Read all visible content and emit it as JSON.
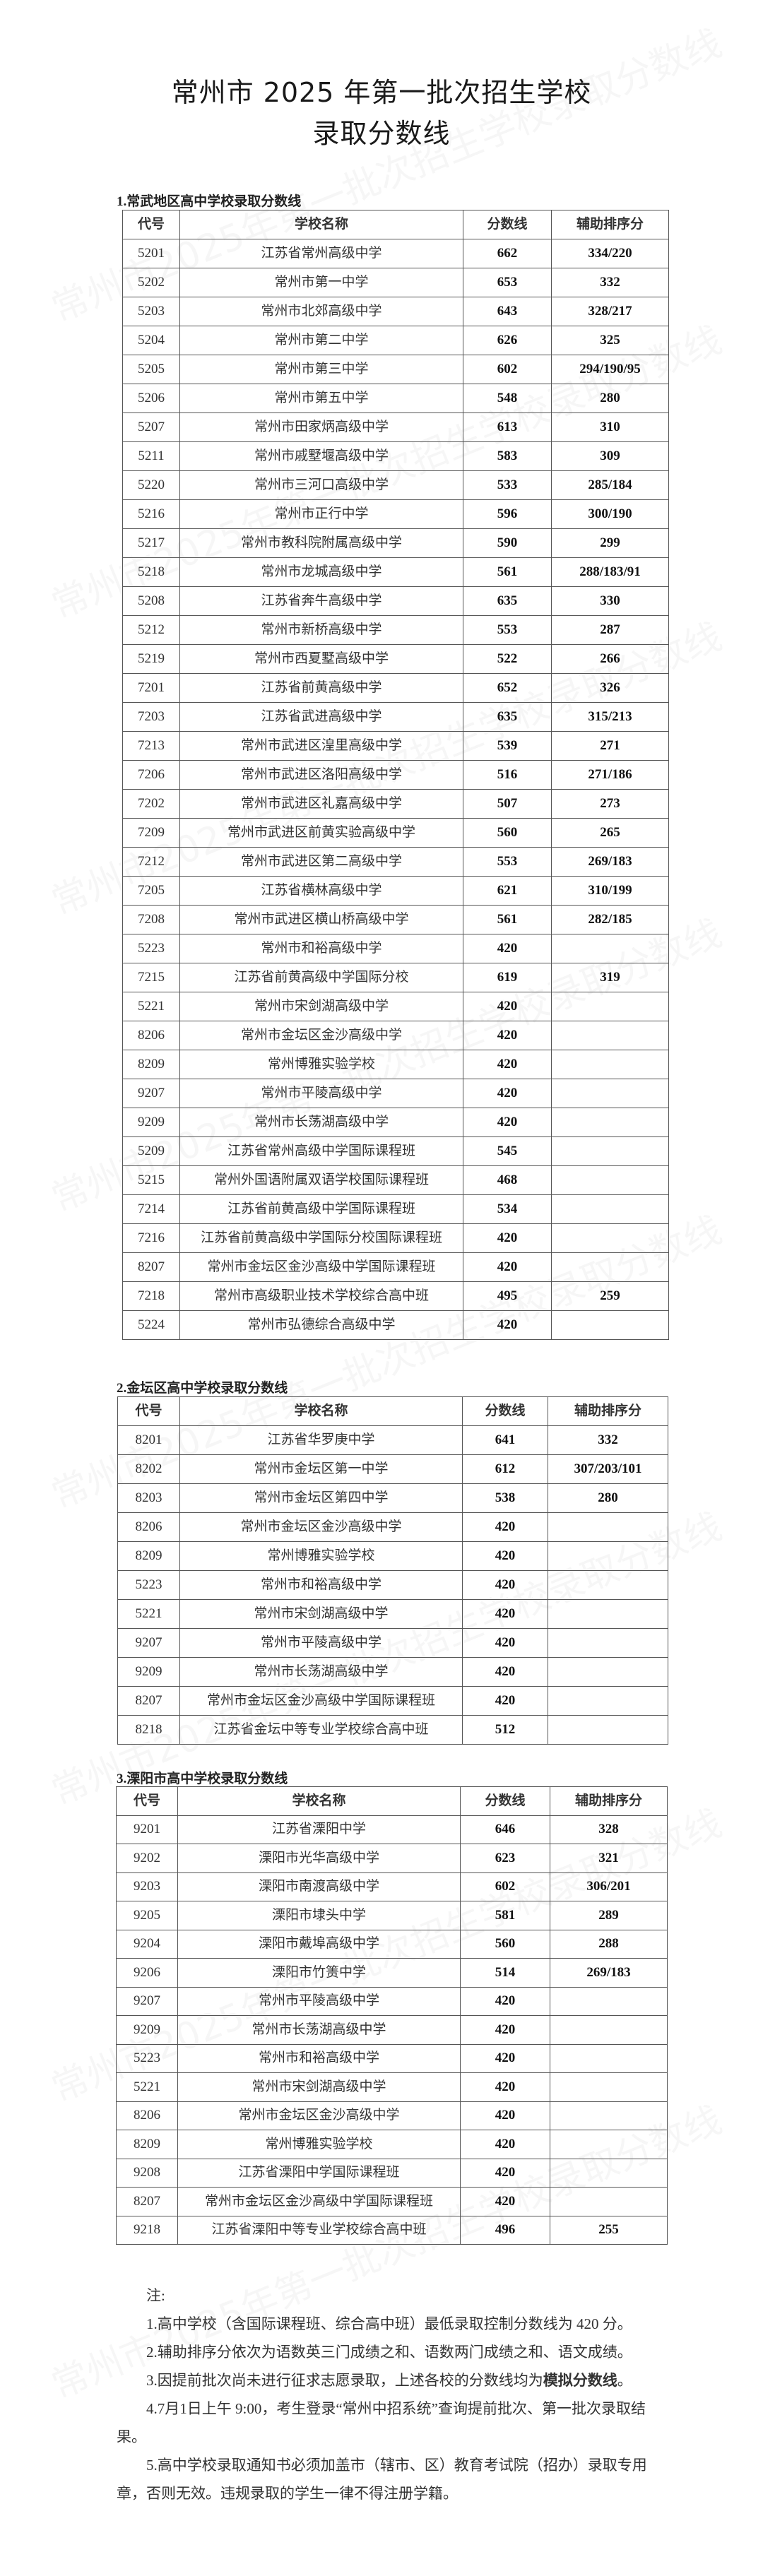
{
  "watermark": "常州市2025年第一批次招生学校录取分数线",
  "title_line1": "常州市 2025 年第一批次招生学校",
  "title_line2": "录取分数线",
  "headers": [
    "代号",
    "学校名称",
    "分数线",
    "辅助排序分"
  ],
  "sections": [
    {
      "heading": "1.常武地区高中学校录取分数线",
      "rows": [
        [
          "5201",
          "江苏省常州高级中学",
          "662",
          "334/220"
        ],
        [
          "5202",
          "常州市第一中学",
          "653",
          "332"
        ],
        [
          "5203",
          "常州市北郊高级中学",
          "643",
          "328/217"
        ],
        [
          "5204",
          "常州市第二中学",
          "626",
          "325"
        ],
        [
          "5205",
          "常州市第三中学",
          "602",
          "294/190/95"
        ],
        [
          "5206",
          "常州市第五中学",
          "548",
          "280"
        ],
        [
          "5207",
          "常州市田家炳高级中学",
          "613",
          "310"
        ],
        [
          "5211",
          "常州市戚墅堰高级中学",
          "583",
          "309"
        ],
        [
          "5220",
          "常州市三河口高级中学",
          "533",
          "285/184"
        ],
        [
          "5216",
          "常州市正行中学",
          "596",
          "300/190"
        ],
        [
          "5217",
          "常州市教科院附属高级中学",
          "590",
          "299"
        ],
        [
          "5218",
          "常州市龙城高级中学",
          "561",
          "288/183/91"
        ],
        [
          "5208",
          "江苏省奔牛高级中学",
          "635",
          "330"
        ],
        [
          "5212",
          "常州市新桥高级中学",
          "553",
          "287"
        ],
        [
          "5219",
          "常州市西夏墅高级中学",
          "522",
          "266"
        ],
        [
          "7201",
          "江苏省前黄高级中学",
          "652",
          "326"
        ],
        [
          "7203",
          "江苏省武进高级中学",
          "635",
          "315/213"
        ],
        [
          "7213",
          "常州市武进区湟里高级中学",
          "539",
          "271"
        ],
        [
          "7206",
          "常州市武进区洛阳高级中学",
          "516",
          "271/186"
        ],
        [
          "7202",
          "常州市武进区礼嘉高级中学",
          "507",
          "273"
        ],
        [
          "7209",
          "常州市武进区前黄实验高级中学",
          "560",
          "265"
        ],
        [
          "7212",
          "常州市武进区第二高级中学",
          "553",
          "269/183"
        ],
        [
          "7205",
          "江苏省横林高级中学",
          "621",
          "310/199"
        ],
        [
          "7208",
          "常州市武进区横山桥高级中学",
          "561",
          "282/185"
        ],
        [
          "5223",
          "常州市和裕高级中学",
          "420",
          ""
        ],
        [
          "7215",
          "江苏省前黄高级中学国际分校",
          "619",
          "319"
        ],
        [
          "5221",
          "常州市宋剑湖高级中学",
          "420",
          ""
        ],
        [
          "8206",
          "常州市金坛区金沙高级中学",
          "420",
          ""
        ],
        [
          "8209",
          "常州博雅实验学校",
          "420",
          ""
        ],
        [
          "9207",
          "常州市平陵高级中学",
          "420",
          ""
        ],
        [
          "9209",
          "常州市长荡湖高级中学",
          "420",
          ""
        ],
        [
          "5209",
          "江苏省常州高级中学国际课程班",
          "545",
          ""
        ],
        [
          "5215",
          "常州外国语附属双语学校国际课程班",
          "468",
          ""
        ],
        [
          "7214",
          "江苏省前黄高级中学国际课程班",
          "534",
          ""
        ],
        [
          "7216",
          "江苏省前黄高级中学国际分校国际课程班",
          "420",
          ""
        ],
        [
          "8207",
          "常州市金坛区金沙高级中学国际课程班",
          "420",
          ""
        ],
        [
          "7218",
          "常州市高级职业技术学校综合高中班",
          "495",
          "259"
        ],
        [
          "5224",
          "常州市弘德综合高级中学",
          "420",
          ""
        ]
      ]
    },
    {
      "heading": "2.金坛区高中学校录取分数线",
      "rows": [
        [
          "8201",
          "江苏省华罗庚中学",
          "641",
          "332"
        ],
        [
          "8202",
          "常州市金坛区第一中学",
          "612",
          "307/203/101"
        ],
        [
          "8203",
          "常州市金坛区第四中学",
          "538",
          "280"
        ],
        [
          "8206",
          "常州市金坛区金沙高级中学",
          "420",
          ""
        ],
        [
          "8209",
          "常州博雅实验学校",
          "420",
          ""
        ],
        [
          "5223",
          "常州市和裕高级中学",
          "420",
          ""
        ],
        [
          "5221",
          "常州市宋剑湖高级中学",
          "420",
          ""
        ],
        [
          "9207",
          "常州市平陵高级中学",
          "420",
          ""
        ],
        [
          "9209",
          "常州市长荡湖高级中学",
          "420",
          ""
        ],
        [
          "8207",
          "常州市金坛区金沙高级中学国际课程班",
          "420",
          ""
        ],
        [
          "8218",
          "江苏省金坛中等专业学校综合高中班",
          "512",
          ""
        ]
      ]
    },
    {
      "heading": "3.溧阳市高中学校录取分数线",
      "rows": [
        [
          "9201",
          "江苏省溧阳中学",
          "646",
          "328"
        ],
        [
          "9202",
          "溧阳市光华高级中学",
          "623",
          "321"
        ],
        [
          "9203",
          "溧阳市南渡高级中学",
          "602",
          "306/201"
        ],
        [
          "9205",
          "溧阳市埭头中学",
          "581",
          "289"
        ],
        [
          "9204",
          "溧阳市戴埠高级中学",
          "560",
          "288"
        ],
        [
          "9206",
          "溧阳市竹箦中学",
          "514",
          "269/183"
        ],
        [
          "9207",
          "常州市平陵高级中学",
          "420",
          ""
        ],
        [
          "9209",
          "常州市长荡湖高级中学",
          "420",
          ""
        ],
        [
          "5223",
          "常州市和裕高级中学",
          "420",
          ""
        ],
        [
          "5221",
          "常州市宋剑湖高级中学",
          "420",
          ""
        ],
        [
          "8206",
          "常州市金坛区金沙高级中学",
          "420",
          ""
        ],
        [
          "8209",
          "常州博雅实验学校",
          "420",
          ""
        ],
        [
          "9208",
          "江苏省溧阳中学国际课程班",
          "420",
          ""
        ],
        [
          "8207",
          "常州市金坛区金沙高级中学国际课程班",
          "420",
          ""
        ],
        [
          "9218",
          "江苏省溧阳中等专业学校综合高中班",
          "496",
          "255"
        ]
      ]
    }
  ],
  "notes": {
    "label": "注:",
    "items": [
      "1.高中学校（含国际课程班、综合高中班）最低录取控制分数线为 420 分。",
      "2.辅助排序分依次为语数英三门成绩之和、语数两门成绩之和、语文成绩。",
      "3.因提前批次尚未进行征求志愿录取，上述各校的分数线均为",
      "4.7月1日上午 9:00，考生登录“常州中招系统”查询提前批次、第一批次录取结果。",
      "5.高中学校录取通知书必须加盖市（辖市、区）教育考试院（招办）录取专用章，否则无效。违规录取的学生一律不得注册学籍。"
    ],
    "item3_bold": "模拟分数线",
    "item3_end": "。"
  }
}
